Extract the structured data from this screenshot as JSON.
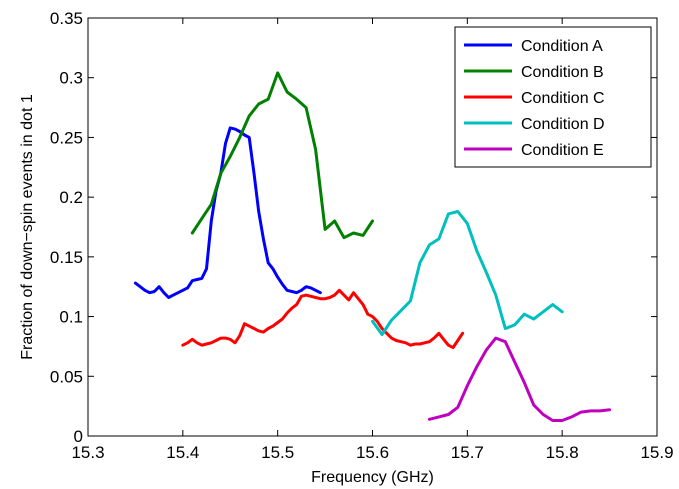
{
  "chart_data": {
    "type": "line",
    "xlabel": "Frequency (GHz)",
    "ylabel": "Fraction of down−spin events in dot 1",
    "xlim": [
      15.3,
      15.9
    ],
    "ylim": [
      0,
      0.35
    ],
    "xticks": [
      15.3,
      15.4,
      15.5,
      15.6,
      15.7,
      15.8,
      15.9
    ],
    "xtick_labels": [
      "15.3",
      "15.4",
      "15.5",
      "15.6",
      "15.7",
      "15.8",
      "15.9"
    ],
    "yticks": [
      0,
      0.05,
      0.1,
      0.15,
      0.2,
      0.25,
      0.3,
      0.35
    ],
    "ytick_labels": [
      "0",
      "0.05",
      "0.1",
      "0.15",
      "0.2",
      "0.25",
      "0.3",
      "0.35"
    ],
    "grid": false,
    "legend_position": "top-right",
    "series": [
      {
        "name": "Condition A",
        "color": "#0000ff",
        "x": [
          15.35,
          15.355,
          15.36,
          15.365,
          15.37,
          15.375,
          15.38,
          15.385,
          15.39,
          15.395,
          15.4,
          15.405,
          15.41,
          15.415,
          15.42,
          15.425,
          15.43,
          15.435,
          15.44,
          15.445,
          15.45,
          15.455,
          15.46,
          15.465,
          15.47,
          15.475,
          15.48,
          15.485,
          15.49,
          15.495,
          15.5,
          15.505,
          15.51,
          15.515,
          15.52,
          15.525,
          15.53,
          15.535,
          15.54,
          15.545
        ],
        "y": [
          0.128,
          0.125,
          0.122,
          0.12,
          0.121,
          0.125,
          0.12,
          0.116,
          0.118,
          0.12,
          0.122,
          0.124,
          0.13,
          0.131,
          0.132,
          0.14,
          0.18,
          0.205,
          0.22,
          0.245,
          0.258,
          0.257,
          0.255,
          0.252,
          0.25,
          0.22,
          0.188,
          0.165,
          0.145,
          0.14,
          0.133,
          0.127,
          0.122,
          0.121,
          0.12,
          0.122,
          0.125,
          0.124,
          0.122,
          0.12
        ]
      },
      {
        "name": "Condition B",
        "color": "#008000",
        "x": [
          15.41,
          15.42,
          15.43,
          15.44,
          15.45,
          15.46,
          15.47,
          15.48,
          15.49,
          15.5,
          15.51,
          15.52,
          15.53,
          15.54,
          15.55,
          15.56,
          15.57,
          15.58,
          15.59,
          15.6
        ],
        "y": [
          0.17,
          0.182,
          0.194,
          0.22,
          0.234,
          0.25,
          0.268,
          0.278,
          0.282,
          0.304,
          0.288,
          0.282,
          0.275,
          0.24,
          0.173,
          0.18,
          0.166,
          0.17,
          0.168,
          0.18
        ]
      },
      {
        "name": "Condition C",
        "color": "#ff0000",
        "x": [
          15.4,
          15.405,
          15.41,
          15.415,
          15.42,
          15.425,
          15.43,
          15.435,
          15.44,
          15.445,
          15.45,
          15.455,
          15.46,
          15.465,
          15.47,
          15.475,
          15.48,
          15.485,
          15.49,
          15.495,
          15.5,
          15.505,
          15.51,
          15.515,
          15.52,
          15.525,
          15.53,
          15.535,
          15.54,
          15.545,
          15.55,
          15.555,
          15.56,
          15.565,
          15.57,
          15.575,
          15.58,
          15.585,
          15.59,
          15.595,
          15.6,
          15.605,
          15.61,
          15.615,
          15.62,
          15.625,
          15.63,
          15.635,
          15.64,
          15.645,
          15.65,
          15.655,
          15.66,
          15.665,
          15.67,
          15.675,
          15.68,
          15.685,
          15.69,
          15.695
        ],
        "y": [
          0.076,
          0.078,
          0.081,
          0.078,
          0.076,
          0.077,
          0.078,
          0.08,
          0.082,
          0.082,
          0.081,
          0.078,
          0.084,
          0.094,
          0.092,
          0.09,
          0.088,
          0.087,
          0.09,
          0.092,
          0.095,
          0.098,
          0.103,
          0.107,
          0.11,
          0.117,
          0.118,
          0.117,
          0.116,
          0.115,
          0.115,
          0.116,
          0.118,
          0.122,
          0.118,
          0.114,
          0.12,
          0.115,
          0.11,
          0.102,
          0.1,
          0.096,
          0.09,
          0.086,
          0.082,
          0.08,
          0.079,
          0.078,
          0.076,
          0.077,
          0.077,
          0.078,
          0.079,
          0.082,
          0.086,
          0.081,
          0.076,
          0.074,
          0.08,
          0.086
        ]
      },
      {
        "name": "Condition D",
        "color": "#00bfbf",
        "x": [
          15.6,
          15.61,
          15.62,
          15.63,
          15.64,
          15.65,
          15.66,
          15.67,
          15.68,
          15.685,
          15.69,
          15.7,
          15.71,
          15.72,
          15.73,
          15.74,
          15.75,
          15.76,
          15.77,
          15.78,
          15.79,
          15.8
        ],
        "y": [
          0.096,
          0.085,
          0.097,
          0.105,
          0.113,
          0.145,
          0.16,
          0.165,
          0.186,
          0.187,
          0.188,
          0.178,
          0.155,
          0.137,
          0.118,
          0.09,
          0.093,
          0.102,
          0.098,
          0.104,
          0.11,
          0.104
        ]
      },
      {
        "name": "Condition E",
        "color": "#bf00bf",
        "x": [
          15.66,
          15.67,
          15.68,
          15.69,
          15.7,
          15.71,
          15.72,
          15.73,
          15.74,
          15.75,
          15.76,
          15.77,
          15.78,
          15.79,
          15.8,
          15.81,
          15.82,
          15.83,
          15.84,
          15.85
        ],
        "y": [
          0.014,
          0.016,
          0.018,
          0.024,
          0.042,
          0.058,
          0.072,
          0.082,
          0.079,
          0.062,
          0.045,
          0.026,
          0.018,
          0.013,
          0.013,
          0.016,
          0.02,
          0.021,
          0.021,
          0.022
        ]
      }
    ]
  }
}
